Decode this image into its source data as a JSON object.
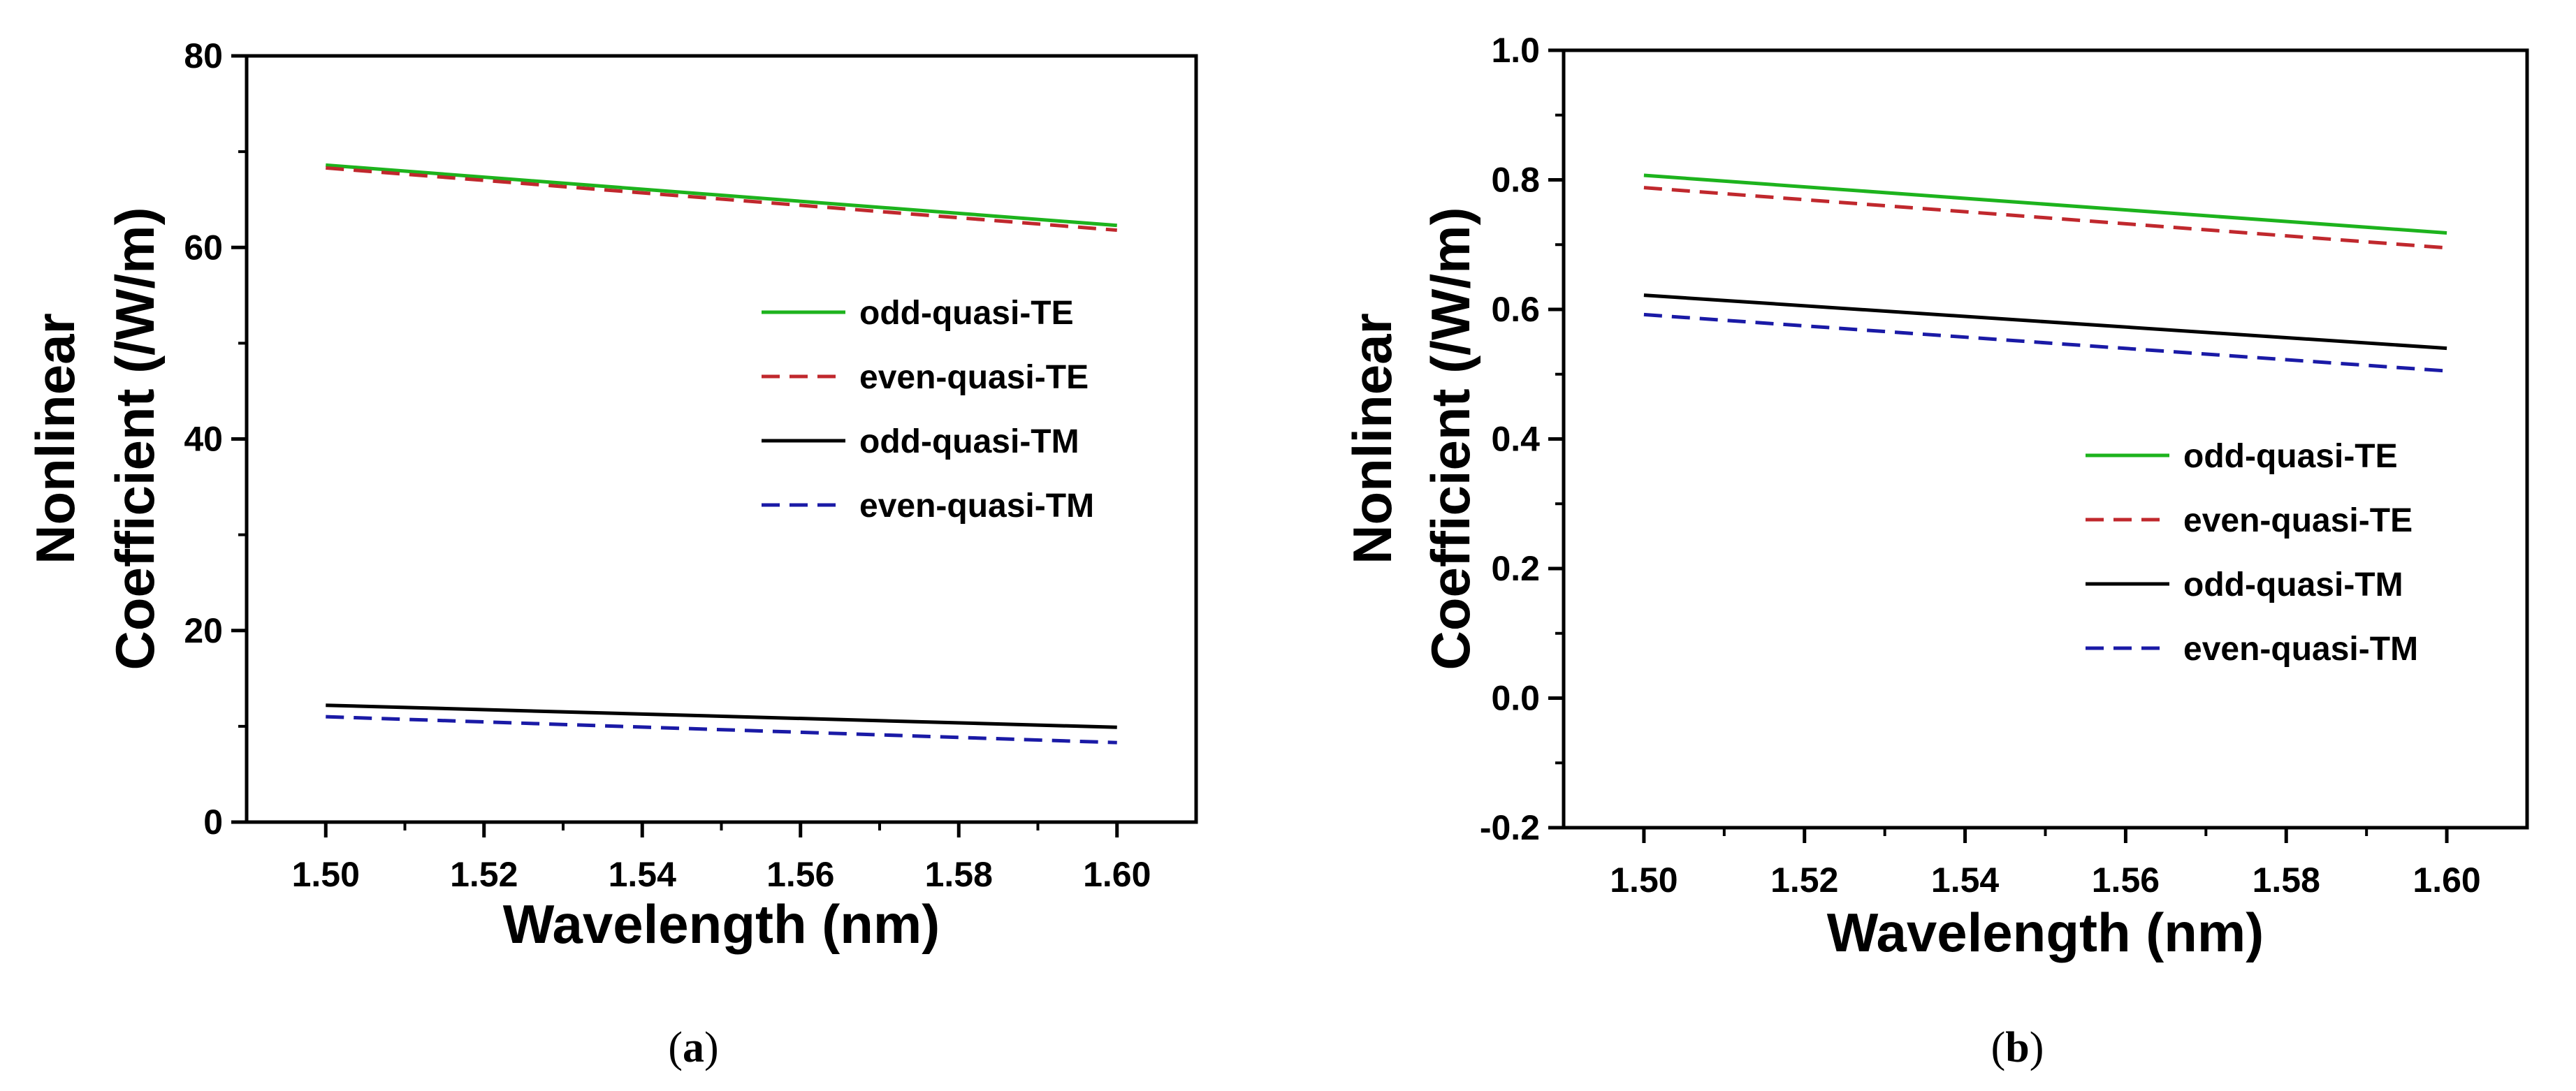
{
  "chart_data": [
    {
      "type": "line",
      "panel_label": "a",
      "xlabel": "Wavelength (nm)",
      "ylabel_lines": [
        "Nonlinear",
        "Coefficient (/W/m)"
      ],
      "xlim": [
        1.49,
        1.61
      ],
      "ylim": [
        0,
        80
      ],
      "xticks": [
        1.5,
        1.52,
        1.54,
        1.56,
        1.58,
        1.6
      ],
      "xtick_labels": [
        "1.50",
        "1.52",
        "1.54",
        "1.56",
        "1.58",
        "1.60"
      ],
      "yticks": [
        0,
        20,
        40,
        60,
        80
      ],
      "ytick_labels": [
        "0",
        "20",
        "40",
        "60",
        "80"
      ],
      "grid": false,
      "legend_position": "center-right",
      "series": [
        {
          "name": "odd-quasi-TE",
          "color": "#1db31d",
          "dash": "solid",
          "x": [
            1.5,
            1.6
          ],
          "y": [
            68.6,
            62.3
          ]
        },
        {
          "name": "even-quasi-TE",
          "color": "#c0282d",
          "dash": "dashed",
          "x": [
            1.5,
            1.6
          ],
          "y": [
            68.3,
            61.8
          ]
        },
        {
          "name": "odd-quasi-TM",
          "color": "#000000",
          "dash": "solid",
          "x": [
            1.5,
            1.6
          ],
          "y": [
            12.2,
            9.9
          ]
        },
        {
          "name": "even-quasi-TM",
          "color": "#1a1aa6",
          "dash": "dashed",
          "x": [
            1.5,
            1.6
          ],
          "y": [
            11.0,
            8.3
          ]
        }
      ]
    },
    {
      "type": "line",
      "panel_label": "b",
      "xlabel": "Wavelength (nm)",
      "ylabel_lines": [
        "Nonlinear",
        "Coefficient (/W/m)"
      ],
      "xlim": [
        1.49,
        1.61
      ],
      "ylim": [
        -0.2,
        1.0
      ],
      "xticks": [
        1.5,
        1.52,
        1.54,
        1.56,
        1.58,
        1.6
      ],
      "xtick_labels": [
        "1.50",
        "1.52",
        "1.54",
        "1.56",
        "1.58",
        "1.60"
      ],
      "yticks": [
        -0.2,
        0.0,
        0.2,
        0.4,
        0.6,
        0.8,
        1.0
      ],
      "ytick_labels": [
        "-0.2",
        "0.0",
        "0.2",
        "0.4",
        "0.6",
        "0.8",
        "1.0"
      ],
      "grid": false,
      "legend_position": "lower-right",
      "series": [
        {
          "name": "odd-quasi-TE",
          "color": "#1db31d",
          "dash": "solid",
          "x": [
            1.5,
            1.6
          ],
          "y": [
            0.807,
            0.718
          ]
        },
        {
          "name": "even-quasi-TE",
          "color": "#c0282d",
          "dash": "dashed",
          "x": [
            1.5,
            1.6
          ],
          "y": [
            0.788,
            0.695
          ]
        },
        {
          "name": "odd-quasi-TM",
          "color": "#000000",
          "dash": "solid",
          "x": [
            1.5,
            1.6
          ],
          "y": [
            0.622,
            0.54
          ]
        },
        {
          "name": "even-quasi-TM",
          "color": "#1a1aa6",
          "dash": "dashed",
          "x": [
            1.5,
            1.6
          ],
          "y": [
            0.592,
            0.505
          ]
        }
      ]
    }
  ]
}
